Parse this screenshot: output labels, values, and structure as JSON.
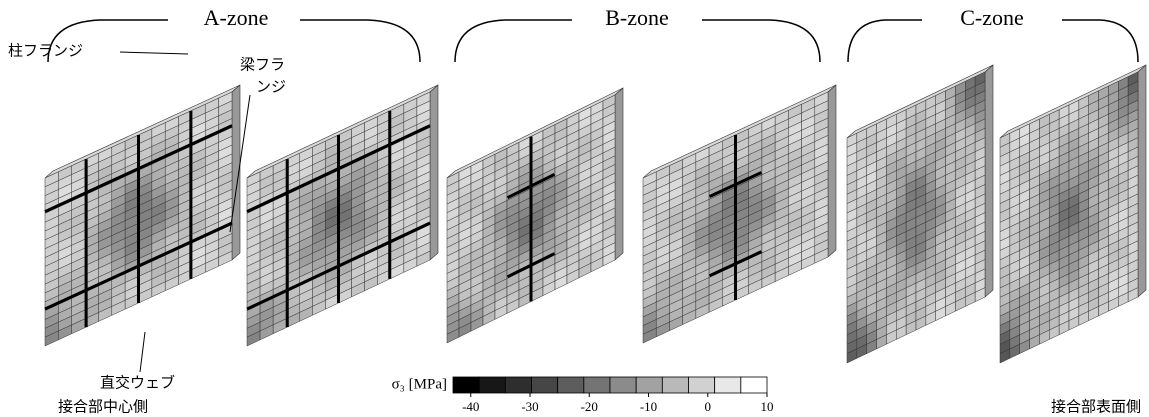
{
  "zones": [
    "A-zone",
    "B-zone",
    "C-zone"
  ],
  "annotations": {
    "column_flange": "柱フランジ",
    "beam_flange": [
      "梁フラ",
      "ンジ"
    ],
    "orthogonal_web": "直交ウェブ"
  },
  "bottom_labels": {
    "left": "接合部中心側",
    "right": "接合部表面側"
  },
  "colorbar": {
    "label": "σ₃ [MPa]",
    "lim": [
      -43,
      10
    ],
    "ticks": [
      -40,
      -30,
      -20,
      -10,
      0,
      10
    ]
  }
}
